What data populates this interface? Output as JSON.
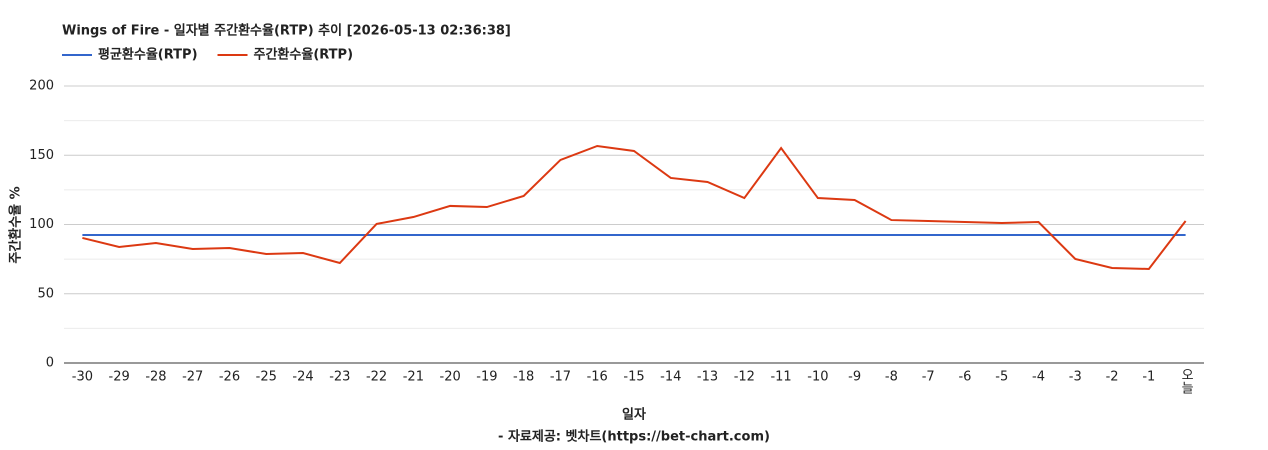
{
  "chart_data": {
    "type": "line",
    "title": "Wings of Fire - 일자별 주간환수율(RTP) 추이 [2026-05-13 02:36:38]",
    "x_label": "일자",
    "y_label": "주간환수율 %",
    "source": "- 자료제공: 벳차트(https://bet-chart.com)",
    "categories": [
      "-30",
      "-29",
      "-28",
      "-27",
      "-26",
      "-25",
      "-24",
      "-23",
      "-22",
      "-21",
      "-20",
      "-19",
      "-18",
      "-17",
      "-16",
      "-15",
      "-14",
      "-13",
      "-12",
      "-11",
      "-10",
      "-9",
      "-8",
      "-7",
      "-6",
      "-5",
      "-4",
      "-3",
      "-2",
      "-1",
      "오늘"
    ],
    "series": [
      {
        "name": "평균환수율(RTP)",
        "color": "#3366cc",
        "values": [
          92.4,
          92.4,
          92.4,
          92.4,
          92.4,
          92.4,
          92.4,
          92.4,
          92.4,
          92.4,
          92.4,
          92.4,
          92.4,
          92.4,
          92.4,
          92.4,
          92.4,
          92.4,
          92.4,
          92.4,
          92.4,
          92.4,
          92.4,
          92.4,
          92.4,
          92.4,
          92.4,
          92.4,
          92.4,
          92.4,
          92.4
        ]
      },
      {
        "name": "주간환수율(RTP)",
        "color": "#dc3912",
        "values": [
          90.3,
          83.8,
          86.6,
          82.3,
          83.0,
          78.7,
          79.4,
          72.2,
          100.4,
          105.4,
          113.4,
          112.6,
          120.6,
          146.6,
          156.7,
          153.1,
          133.6,
          130.7,
          119.1,
          155.2,
          119.1,
          117.7,
          103.2,
          102.5,
          101.8,
          101.1,
          101.8,
          75.1,
          68.6,
          67.9,
          102.5
        ]
      }
    ],
    "ylim": [
      0,
      200
    ],
    "yticks": [
      0,
      50,
      100,
      150,
      200
    ],
    "grid": true,
    "legend": "top-left"
  }
}
